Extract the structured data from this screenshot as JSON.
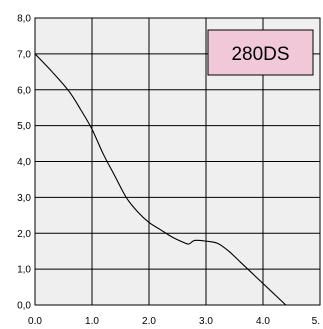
{
  "chart_data": {
    "type": "line",
    "title": "",
    "xlabel": "",
    "ylabel": "",
    "xlim": [
      0,
      5
    ],
    "ylim": [
      0,
      8
    ],
    "x_ticks": [
      "0.0",
      "1.0",
      "2.0",
      "3.0",
      "4.0",
      "5."
    ],
    "y_ticks": [
      "0,0",
      "1,0",
      "2,0",
      "3,0",
      "4,0",
      "5,0",
      "6,0",
      "7,0",
      "8,0"
    ],
    "grid": true,
    "legend": {
      "text": "280DS",
      "placement": "top-right"
    },
    "colors": {
      "plot_background": "#efefef",
      "grid": "#000000",
      "line": "#000000",
      "legend_fill": "#f0c8d8",
      "legend_border": "#000000"
    },
    "series": [
      {
        "x": [
          0.0,
          0.3,
          0.6,
          0.8,
          1.0,
          1.2,
          1.4,
          1.6,
          1.8,
          2.0,
          2.2,
          2.4,
          2.6,
          2.7,
          2.8,
          3.0,
          3.2,
          3.4,
          3.6,
          3.8,
          4.0,
          4.2,
          4.4
        ],
        "y": [
          7.0,
          6.5,
          5.95,
          5.45,
          4.9,
          4.2,
          3.6,
          3.0,
          2.6,
          2.3,
          2.1,
          1.9,
          1.75,
          1.7,
          1.8,
          1.78,
          1.72,
          1.5,
          1.2,
          0.9,
          0.6,
          0.3,
          0.0
        ]
      }
    ]
  }
}
